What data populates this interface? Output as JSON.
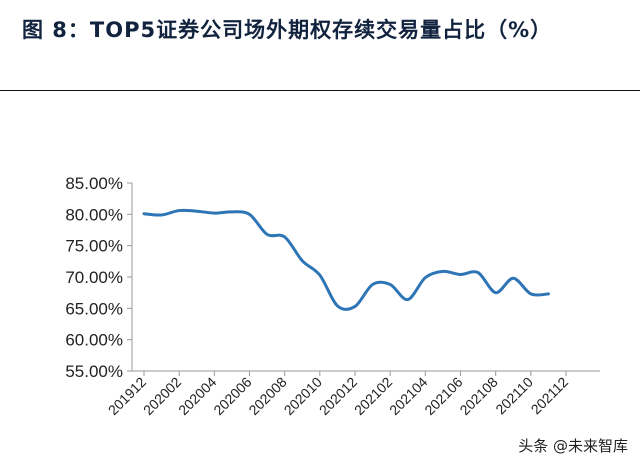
{
  "figure": {
    "title": "图 8：TOP5证券公司场外期权存续交易量占比（%）",
    "watermark": "头条 @未来智库"
  },
  "chart_data": {
    "type": "line",
    "ylim": [
      55,
      85
    ],
    "y_ticks": [
      "85.00%",
      "80.00%",
      "75.00%",
      "70.00%",
      "65.00%",
      "60.00%",
      "55.00%"
    ],
    "y_tick_values": [
      85,
      80,
      75,
      70,
      65,
      60,
      55
    ],
    "x_tick_labels": [
      "201912",
      "202002",
      "202004",
      "202006",
      "202008",
      "202010",
      "202012",
      "202102",
      "202104",
      "202106",
      "202108",
      "202110",
      "202112"
    ],
    "x_units": "month",
    "series": [
      {
        "color": "#2e75b6",
        "x": [
          "201912",
          "202001",
          "202002",
          "202003",
          "202004",
          "202005",
          "202006",
          "202007",
          "202008",
          "202009",
          "202010",
          "202011",
          "202012",
          "202101",
          "202102",
          "202103",
          "202104",
          "202105",
          "202106",
          "202107",
          "202108",
          "202109",
          "202110",
          "202111"
        ],
        "values": [
          80.1,
          79.9,
          80.6,
          80.5,
          80.2,
          80.4,
          80.0,
          76.8,
          76.4,
          72.6,
          70.3,
          65.4,
          65.3,
          68.8,
          68.8,
          66.4,
          69.9,
          70.9,
          70.4,
          70.7,
          67.5,
          69.8,
          67.3,
          67.3
        ]
      }
    ],
    "grid": false,
    "legend": "none"
  }
}
